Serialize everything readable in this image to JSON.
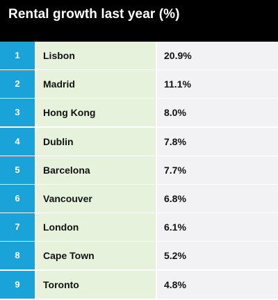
{
  "chart_data": {
    "type": "table",
    "title": "Rental growth last year (%)",
    "columns": [
      "",
      "",
      ""
    ],
    "rows": [
      {
        "rank": "1",
        "city": "Lisbon",
        "value_label": "20.9%",
        "value": 20.9
      },
      {
        "rank": "2",
        "city": "Madrid",
        "value_label": "11.1%",
        "value": 11.1
      },
      {
        "rank": "3",
        "city": "Hong Kong",
        "value_label": "8.0%",
        "value": 8.0
      },
      {
        "rank": "4",
        "city": "Dublin",
        "value_label": "7.8%",
        "value": 7.8
      },
      {
        "rank": "5",
        "city": "Barcelona",
        "value_label": "7.7%",
        "value": 7.7
      },
      {
        "rank": "6",
        "city": "Vancouver",
        "value_label": "6.8%",
        "value": 6.8
      },
      {
        "rank": "7",
        "city": "London",
        "value_label": "6.1%",
        "value": 6.1
      },
      {
        "rank": "8",
        "city": "Cape Town",
        "value_label": "5.2%",
        "value": 5.2
      },
      {
        "rank": "9",
        "city": "Toronto",
        "value_label": "4.8%",
        "value": 4.8
      }
    ]
  },
  "colors": {
    "header_bg": "#000000",
    "title_text": "#ffffff",
    "rank_bg": "#1aa3d9",
    "city_bg": "#e6f2dc",
    "value_bg": "#f2f2f4"
  }
}
